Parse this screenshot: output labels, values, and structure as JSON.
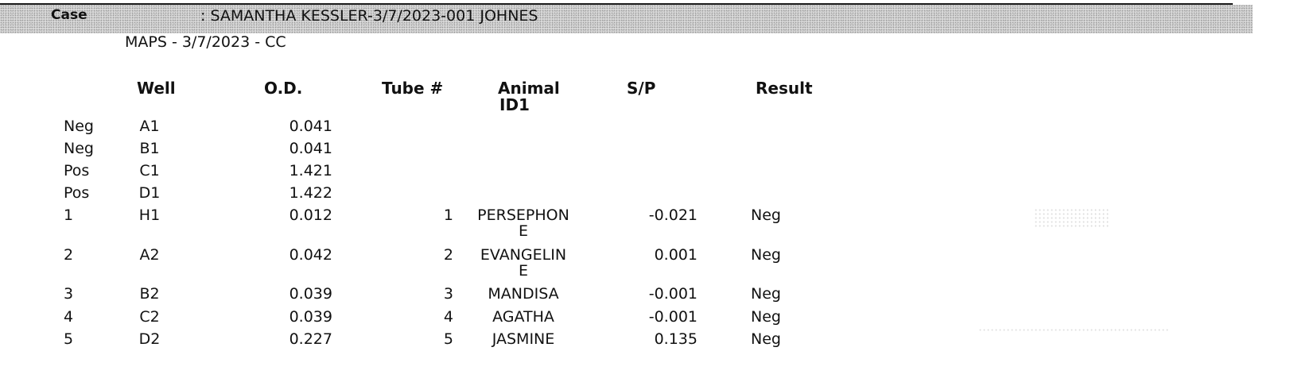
{
  "header": {
    "case_label": "Case",
    "case_value": ": SAMANTHA KESSLER-3/7/2023-001 JOHNES",
    "case_sub": "MAPS - 3/7/2023 - CC"
  },
  "columns": {
    "well": "Well",
    "od": "O.D.",
    "tube": "Tube #",
    "animal_line1": "Animal",
    "animal_line2": "ID1",
    "sp": "S/P",
    "result": "Result"
  },
  "rows": [
    {
      "label": "Neg",
      "well": "A1",
      "od": "0.041",
      "tube": "",
      "animal1": "",
      "animal2": "",
      "sp": "",
      "result": ""
    },
    {
      "label": "Neg",
      "well": "B1",
      "od": "0.041",
      "tube": "",
      "animal1": "",
      "animal2": "",
      "sp": "",
      "result": ""
    },
    {
      "label": "Pos",
      "well": "C1",
      "od": "1.421",
      "tube": "",
      "animal1": "",
      "animal2": "",
      "sp": "",
      "result": ""
    },
    {
      "label": "Pos",
      "well": "D1",
      "od": "1.422",
      "tube": "",
      "animal1": "",
      "animal2": "",
      "sp": "",
      "result": ""
    },
    {
      "label": "1",
      "well": "H1",
      "od": "0.012",
      "tube": "1",
      "animal1": "PERSEPHON",
      "animal2": "E",
      "sp": "-0.021",
      "result": "Neg"
    },
    {
      "label": "2",
      "well": "A2",
      "od": "0.042",
      "tube": "2",
      "animal1": "EVANGELIN",
      "animal2": "E",
      "sp": "0.001",
      "result": "Neg"
    },
    {
      "label": "3",
      "well": "B2",
      "od": "0.039",
      "tube": "3",
      "animal1": "MANDISA",
      "animal2": "",
      "sp": "-0.001",
      "result": "Neg"
    },
    {
      "label": "4",
      "well": "C2",
      "od": "0.039",
      "tube": "4",
      "animal1": "AGATHA",
      "animal2": "",
      "sp": "-0.001",
      "result": "Neg"
    },
    {
      "label": "5",
      "well": "D2",
      "od": "0.227",
      "tube": "5",
      "animal1": "JASMINE",
      "animal2": "",
      "sp": "0.135",
      "result": "Neg"
    }
  ]
}
